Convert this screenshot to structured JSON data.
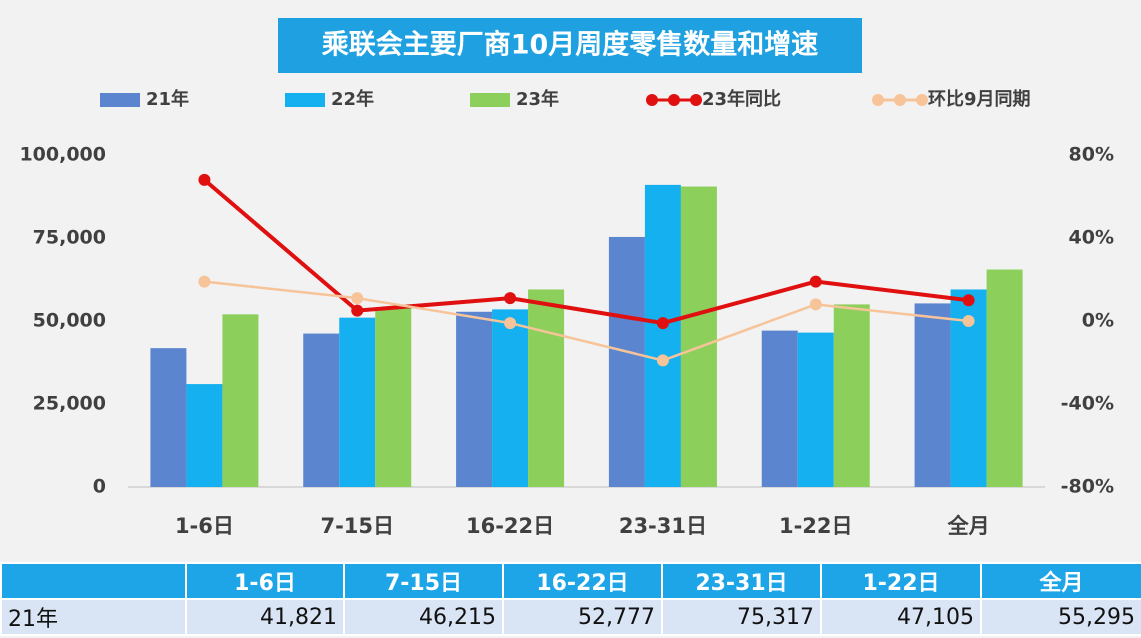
{
  "chart_data": {
    "type": "bar",
    "title": "乘联会主要厂商10月周度零售数量和增速",
    "categories": [
      "1-6日",
      "7-15日",
      "16-22日",
      "23-31日",
      "1-22日",
      "全月"
    ],
    "series": [
      {
        "name": "21年",
        "type": "bar",
        "color": "#5b86cf",
        "values": [
          41821,
          46215,
          52777,
          75317,
          47105,
          55295
        ],
        "value_labels": [
          "41,821",
          "46,215",
          "52,777",
          "75,317",
          "47,105",
          "55,295"
        ]
      },
      {
        "name": "22年",
        "type": "bar",
        "color": "#14b0ef",
        "values": [
          31000,
          51000,
          53500,
          91000,
          46500,
          59500
        ]
      },
      {
        "name": "23年",
        "type": "bar",
        "color": "#8ccf5a",
        "values": [
          52000,
          54000,
          59500,
          90500,
          55000,
          65500
        ]
      },
      {
        "name": "23年同比",
        "type": "line",
        "axis": "y2",
        "color": "#e01010",
        "values": [
          68,
          5,
          11,
          -1,
          19,
          10
        ]
      },
      {
        "name": "环比9月同期",
        "type": "line",
        "axis": "y2",
        "color": "#f7c49a",
        "values": [
          19,
          11,
          -1,
          -19,
          8,
          0
        ]
      }
    ],
    "ylim": [
      0,
      100000
    ],
    "yticks": [
      0,
      {
        "value": 25000,
        "label": "25,000"
      },
      {
        "value": 50000,
        "label": "50,000"
      },
      {
        "value": 75000,
        "label": "75,000"
      },
      {
        "value": 100000,
        "label": "100,000"
      }
    ],
    "y2lim": [
      -80,
      80
    ],
    "y2ticks": [
      {
        "value": -80,
        "label": "-80%"
      },
      {
        "value": -40,
        "label": "-40%"
      },
      {
        "value": 0,
        "label": "0%"
      },
      {
        "value": 40,
        "label": "40%"
      },
      {
        "value": 80,
        "label": "80%"
      }
    ],
    "grid": false,
    "legend": "top"
  }
}
